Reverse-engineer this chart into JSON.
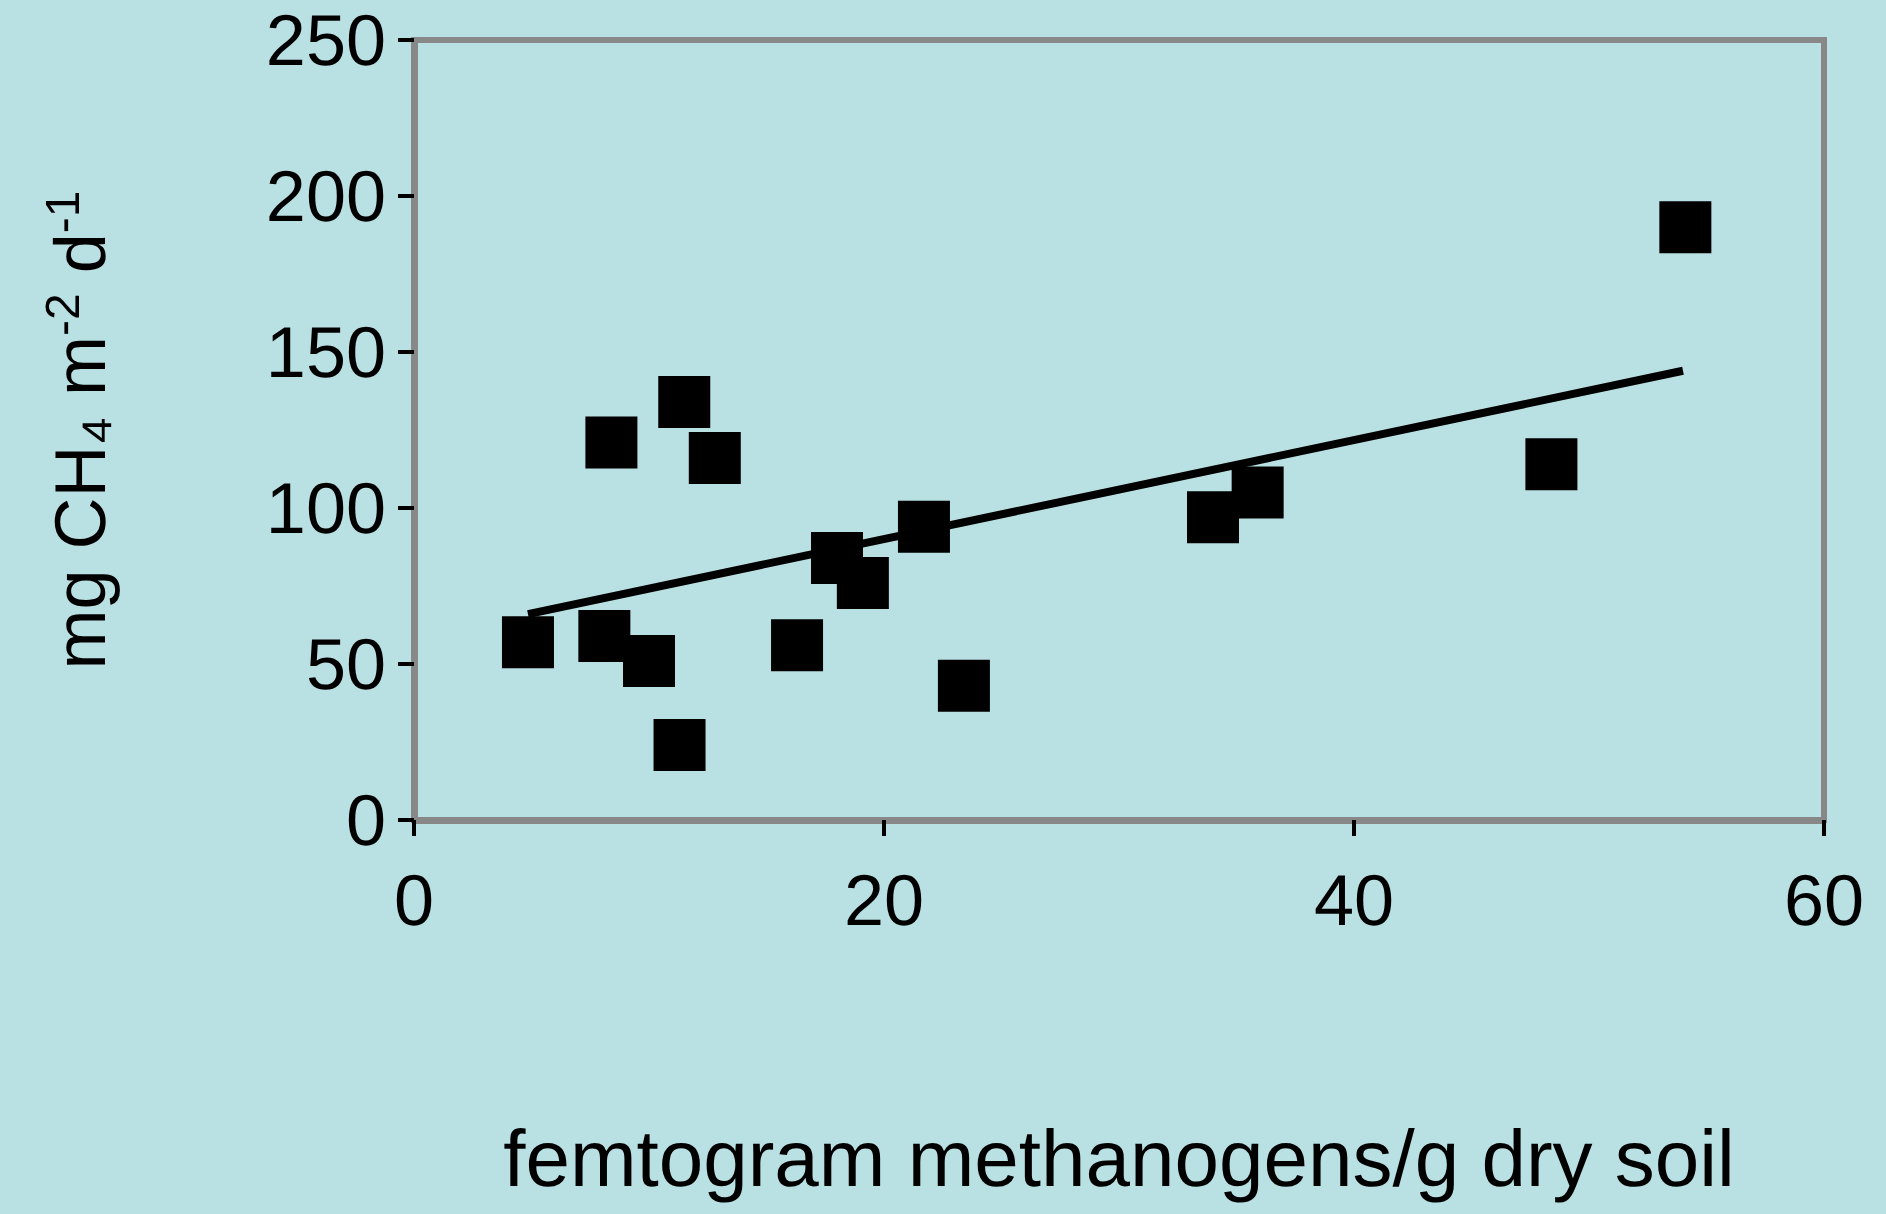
{
  "chart_data": {
    "type": "scatter",
    "xlabel": "femtogram methanogens/g dry soil",
    "ylabel": "mg CH₄ m$^{-2}$ d$^{-1}$",
    "xlim": [
      0,
      60
    ],
    "xticks": [
      0,
      20,
      40,
      60
    ],
    "ylim": [
      0,
      250
    ],
    "yticks": [
      0,
      50,
      100,
      150,
      200,
      250
    ],
    "grid": false,
    "series": [
      {
        "marker": "square",
        "color": "#000000",
        "x": [
          4.85,
          8.1,
          8.4,
          10.0,
          11.3,
          11.5,
          12.8,
          16.3,
          18.0,
          19.1,
          21.7,
          23.4,
          34.0,
          35.9,
          48.4,
          54.1
        ],
        "values": [
          57,
          59,
          121,
          51,
          24,
          134,
          116,
          56,
          84,
          76,
          94,
          43,
          97,
          105,
          114,
          190
        ]
      },
      {
        "type": "line",
        "marker": "none",
        "line_style": "solid",
        "color": "#000000",
        "x": [
          4.85,
          54.0
        ],
        "values": [
          66,
          144
        ]
      }
    ]
  }
}
